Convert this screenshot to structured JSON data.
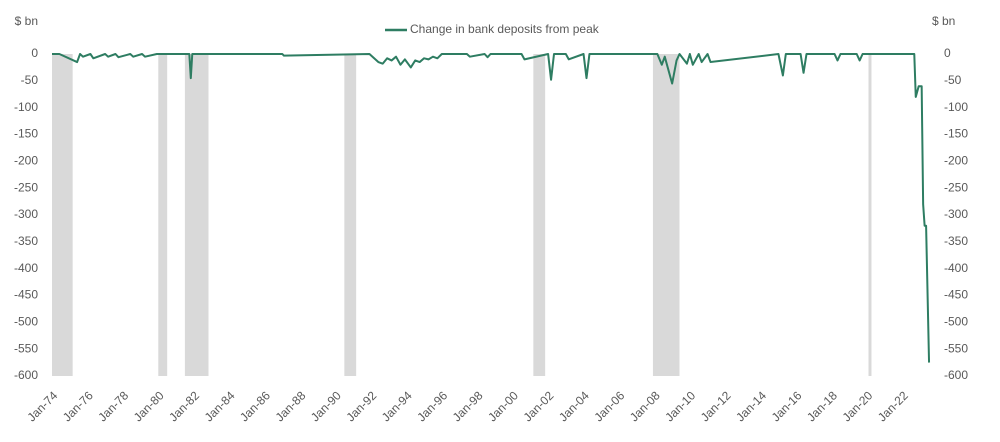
{
  "chart_data": {
    "type": "line",
    "legend_position": "top",
    "y_axis_label": "$ bn",
    "y2_axis_label": "$ bn",
    "x": [
      "Jan-74",
      "Jun-74",
      "Jun-75",
      "Aug-75",
      "Oct-75",
      "Mar-76",
      "May-76",
      "Jan-77",
      "Mar-77",
      "Aug-77",
      "Oct-77",
      "Jun-78",
      "Aug-78",
      "Feb-79",
      "Apr-79",
      "Dec-79",
      "Feb-80",
      "Oct-81",
      "Nov-81",
      "Dec-81",
      "Jan-87",
      "Feb-87",
      "Dec-91",
      "Jun-92",
      "Sep-92",
      "Dec-92",
      "Mar-93",
      "Jun-93",
      "Sep-93",
      "Dec-93",
      "Apr-94",
      "Jul-94",
      "Oct-94",
      "Jan-95",
      "Apr-95",
      "Jul-95",
      "Oct-95",
      "Jan-96",
      "Jun-97",
      "Aug-97",
      "Jun-98",
      "Aug-98",
      "Oct-98",
      "Jul-00",
      "Sep-00",
      "Jan-02",
      "Mar-02",
      "May-02",
      "Jan-03",
      "Mar-03",
      "Jan-04",
      "Mar-04",
      "May-04",
      "Mar-08",
      "Jun-08",
      "Aug-08",
      "Jan-09",
      "Apr-09",
      "Jun-09",
      "Nov-09",
      "Jan-10",
      "Mar-10",
      "Jul-10",
      "Sep-10",
      "Jan-11",
      "Mar-11",
      "Jan-15",
      "Apr-15",
      "Jun-15",
      "Apr-16",
      "Jun-16",
      "Aug-16",
      "Mar-18",
      "May-18",
      "Jul-18",
      "Jun-19",
      "Aug-19",
      "Oct-19",
      "Sep-22",
      "Oct-22",
      "Dec-22",
      "Feb-23",
      "Mar-23",
      "Apr-23",
      "May-23",
      "Jul-23"
    ],
    "series": [
      {
        "name": "Change in bank deposits from peak",
        "color": "#2e7d62",
        "values": [
          0,
          0,
          -15,
          0,
          -5,
          0,
          -8,
          0,
          -5,
          0,
          -6,
          0,
          -5,
          0,
          -5,
          0,
          0,
          0,
          -45,
          0,
          0,
          -3,
          0,
          -15,
          -18,
          -8,
          -12,
          -5,
          -20,
          -10,
          -25,
          -12,
          -15,
          -8,
          -10,
          -5,
          -8,
          0,
          0,
          -5,
          0,
          -6,
          0,
          0,
          -10,
          0,
          -48,
          0,
          0,
          -10,
          0,
          -45,
          0,
          0,
          -20,
          -5,
          -55,
          -12,
          0,
          -18,
          0,
          -20,
          0,
          -15,
          0,
          -15,
          0,
          -40,
          0,
          0,
          -35,
          0,
          0,
          -12,
          0,
          0,
          -12,
          0,
          0,
          -80,
          -60,
          -60,
          -280,
          -320,
          -320,
          -575
        ]
      }
    ],
    "xlim": [
      "Jan-74",
      "Sep-23"
    ],
    "xticks": [
      "Jan-74",
      "Jan-76",
      "Jan-78",
      "Jan-80",
      "Jan-82",
      "Jan-84",
      "Jan-86",
      "Jan-88",
      "Jan-90",
      "Jan-92",
      "Jan-94",
      "Jan-96",
      "Jan-98",
      "Jan-00",
      "Jan-02",
      "Jan-04",
      "Jan-06",
      "Jan-08",
      "Jan-10",
      "Jan-12",
      "Jan-14",
      "Jan-16",
      "Jan-18",
      "Jan-20",
      "Jan-22"
    ],
    "ylim": [
      -600,
      0
    ],
    "yticks": [
      0,
      -50,
      -100,
      -150,
      -200,
      -250,
      -300,
      -350,
      -400,
      -450,
      -500,
      -550,
      -600
    ],
    "y2lim": [
      -600,
      0
    ],
    "y2ticks": [
      0,
      -50,
      -100,
      -150,
      -200,
      -250,
      -300,
      -350,
      -400,
      -450,
      -500,
      -550,
      -600
    ],
    "shade_color": "#d9d9d9",
    "shaded_periods": [
      [
        "Jan-74",
        "Mar-75"
      ],
      [
        "Jan-80",
        "Jul-80"
      ],
      [
        "Jul-81",
        "Nov-82"
      ],
      [
        "Jul-90",
        "Mar-91"
      ],
      [
        "Mar-01",
        "Nov-01"
      ],
      [
        "Dec-07",
        "Jun-09"
      ],
      [
        "Feb-20",
        "Apr-20"
      ]
    ]
  }
}
